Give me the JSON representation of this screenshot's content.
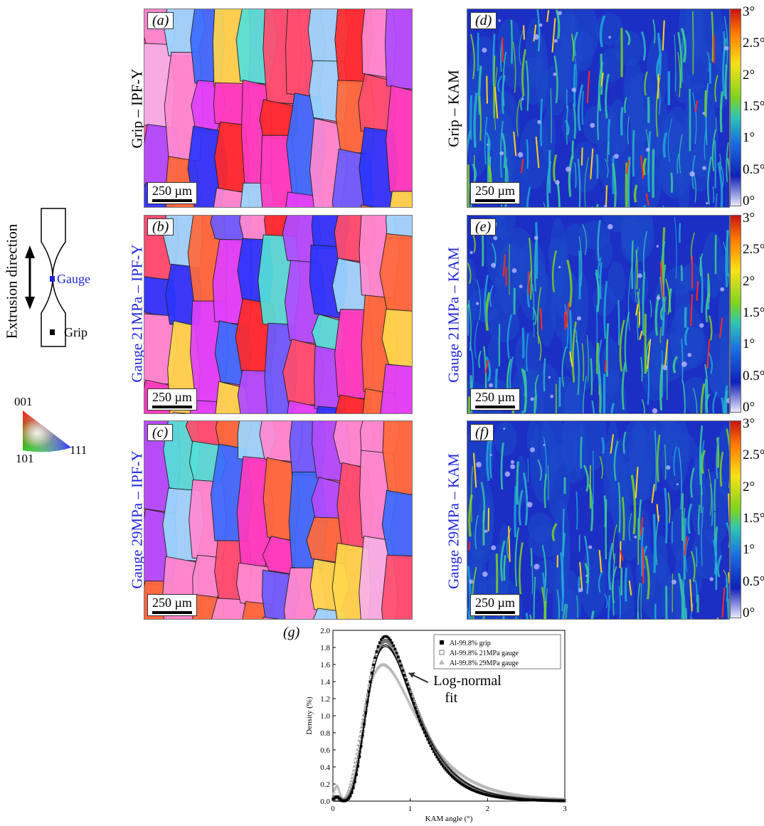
{
  "panels": {
    "a": {
      "letter": "(a)",
      "row_label": "Grip – IPF-Y",
      "scale": "250 µm"
    },
    "b": {
      "letter": "(b)",
      "row_label": "Gauge 21MPa – IPF-Y",
      "scale": "250 µm"
    },
    "c": {
      "letter": "(c)",
      "row_label": "Gauge 29MPa – IPF-Y",
      "scale": "250 µm"
    },
    "d": {
      "letter": "(d)",
      "row_label": "Grip – KAM",
      "scale": "250 µm"
    },
    "e": {
      "letter": "(e)",
      "row_label": "Gauge 21MPa – KAM",
      "scale": "250 µm"
    },
    "f": {
      "letter": "(f)",
      "row_label": "Gauge 29MPa – KAM",
      "scale": "250 µm"
    },
    "g": {
      "letter": "(g)"
    }
  },
  "schematic": {
    "direction_label": "Extrusion direction",
    "gauge_label": "Gauge",
    "grip_label": "Grip"
  },
  "ipf_key": {
    "top": "001",
    "left": "101",
    "right": "111"
  },
  "kam_colorbar": {
    "ticks": [
      "3°",
      "2.5°",
      "2°",
      "1.5°",
      "1°",
      "0.5°",
      "0°"
    ]
  },
  "colors": {
    "label_blue": "#1c24d8",
    "grip_series": "#000000",
    "gauge21_series": "#777777",
    "gauge29_series": "#b9b9b9"
  },
  "annotation": {
    "line1": "Log-normal",
    "line2": "fit"
  },
  "chart_data": {
    "type": "scatter",
    "xlabel": "KAM angle (°)",
    "ylabel": "Density (%)",
    "xlim": [
      0,
      3
    ],
    "ylim": [
      0,
      2.0
    ],
    "xticks": [
      "0",
      "1",
      "2",
      "3"
    ],
    "yticks": [
      "0.0",
      "0.2",
      "0.4",
      "0.6",
      "0.8",
      "1.0",
      "1.2",
      "1.4",
      "1.6",
      "1.8",
      "2.0"
    ],
    "legend_position": "top-right",
    "series": [
      {
        "name": "Al-99.8%  grip",
        "marker": "square",
        "peak_x": 0.68,
        "peak_y": 1.93
      },
      {
        "name": "Al-99.8% 21MPa gauge",
        "marker": "crossed-square",
        "peak_x": 0.68,
        "peak_y": 1.88
      },
      {
        "name": "Al-99.8% 29MPa gauge",
        "marker": "triangle",
        "peak_x": 0.65,
        "peak_y": 1.6
      }
    ],
    "fit": {
      "type": "log-normal",
      "peak_x": 0.68,
      "peak_y": 1.83
    }
  }
}
